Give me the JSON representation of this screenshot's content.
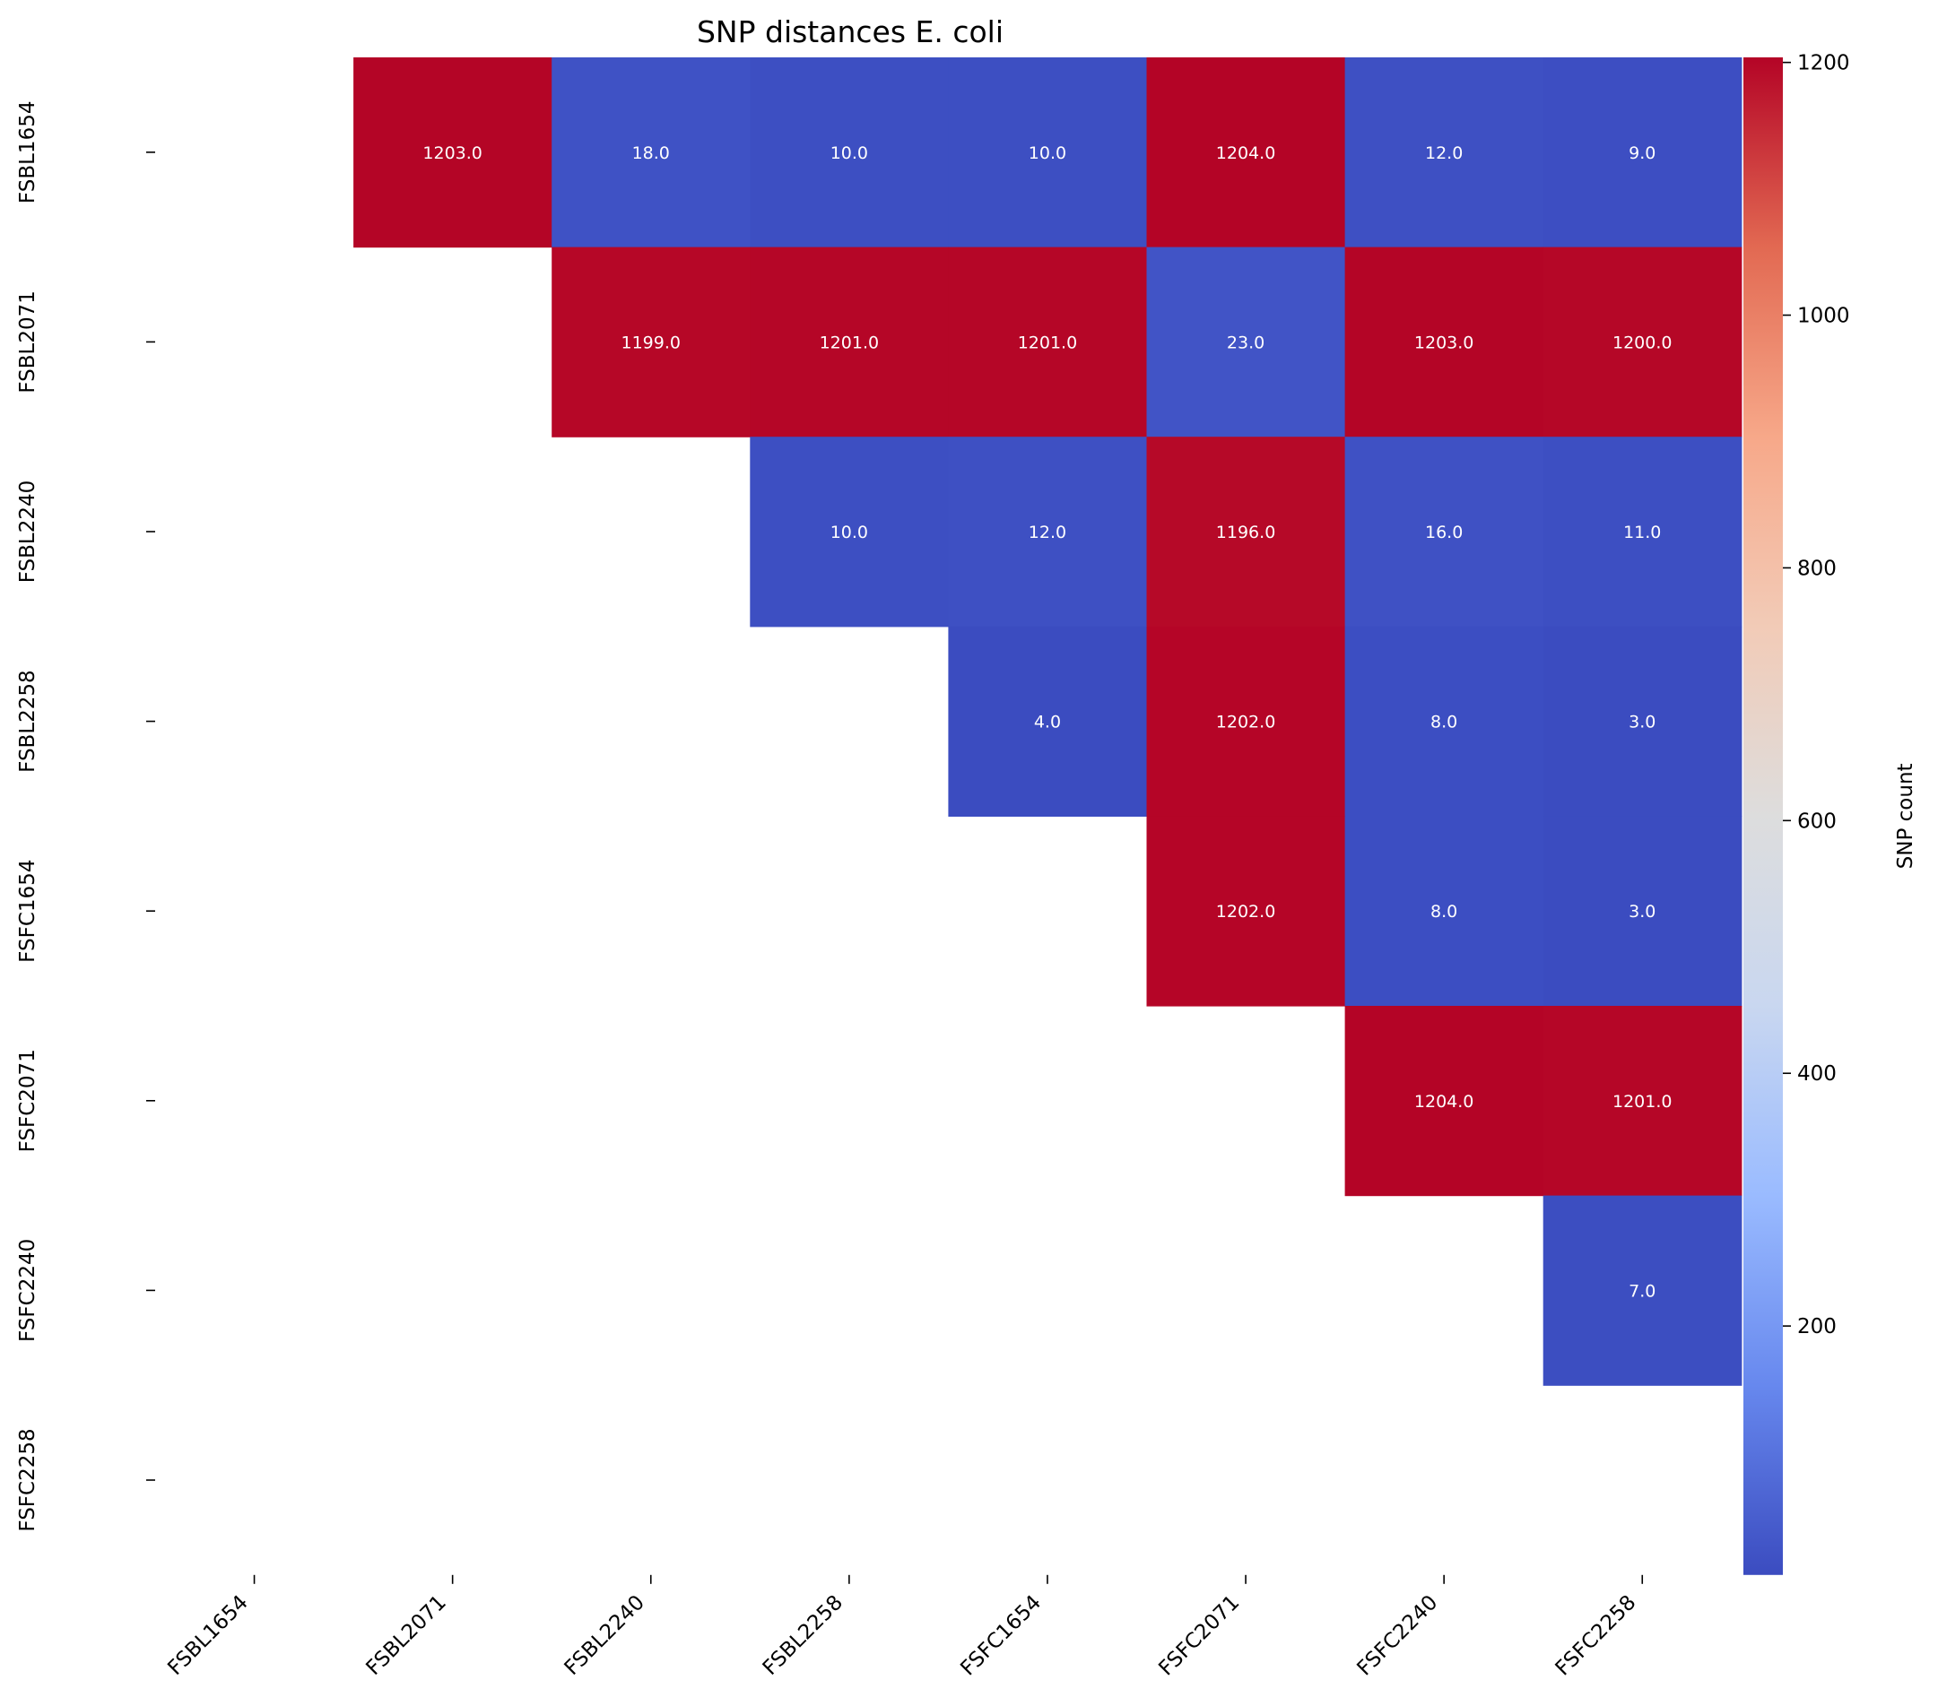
{
  "chart_data": {
    "type": "heatmap",
    "title": "SNP distances E. coli",
    "xlabel": "",
    "ylabel": "",
    "x_labels": [
      "FSBL1654",
      "FSBL2071",
      "FSBL2240",
      "FSBL2258",
      "FSFC1654",
      "FSFC2071",
      "FSFC2240",
      "FSFC2258"
    ],
    "y_labels": [
      "FSBL1654",
      "FSBL2071",
      "FSBL2240",
      "FSBL2258",
      "FSFC1654",
      "FSFC2071",
      "FSFC2240",
      "FSFC2258"
    ],
    "matrix": [
      [
        null,
        1203,
        18,
        10,
        10,
        1204,
        12,
        9
      ],
      [
        null,
        null,
        1199,
        1201,
        1201,
        23,
        1203,
        1200
      ],
      [
        null,
        null,
        null,
        10,
        12,
        1196,
        16,
        11
      ],
      [
        null,
        null,
        null,
        null,
        4,
        1202,
        8,
        3
      ],
      [
        null,
        null,
        null,
        null,
        null,
        1202,
        8,
        3
      ],
      [
        null,
        null,
        null,
        null,
        null,
        null,
        1204,
        1201
      ],
      [
        null,
        null,
        null,
        null,
        null,
        null,
        null,
        7
      ],
      [
        null,
        null,
        null,
        null,
        null,
        null,
        null,
        null
      ]
    ],
    "masked": "lower triangle and diagonal",
    "value_format": "one decimal place",
    "colormap": "coolwarm",
    "colormap_stops": [
      "#3b4cc0",
      "#6788ee",
      "#9abbff",
      "#c9d7f0",
      "#dddddd",
      "#f2cbb7",
      "#f7a889",
      "#e26952",
      "#b40426"
    ],
    "value_range": [
      3,
      1204
    ],
    "colorbar": {
      "label": "SNP count",
      "ticks": [
        200,
        400,
        600,
        800,
        1000,
        1200
      ]
    },
    "grid": false,
    "annotation_color": "#ffffff"
  }
}
